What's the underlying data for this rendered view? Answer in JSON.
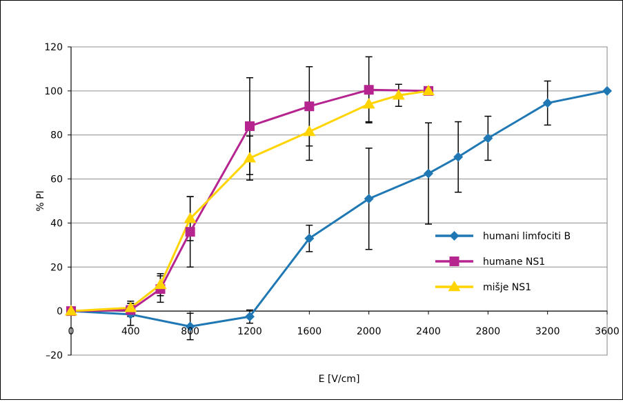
{
  "chart_data": {
    "type": "line",
    "title": "",
    "xlabel": "E [V/cm]",
    "ylabel": "% PI",
    "xlim": [
      0,
      3600
    ],
    "ylim": [
      -20,
      120
    ],
    "x_ticks": [
      "0",
      "400",
      "800",
      "1200",
      "1600",
      "2000",
      "2400",
      "2800",
      "3200",
      "3600"
    ],
    "y_ticks": [
      "–20",
      "0",
      "20",
      "40",
      "60",
      "80",
      "100",
      "120"
    ],
    "grid": "horizontal",
    "legend_position": "right",
    "series": [
      {
        "name": "humani limfociti B",
        "color": "#1f77b4",
        "marker": "diamond",
        "x": [
          0,
          400,
          800,
          1200,
          1600,
          2000,
          2400,
          2600,
          2800,
          3200,
          3600
        ],
        "y": [
          0,
          -1.5,
          -7,
          -2.5,
          33,
          51,
          62.5,
          70,
          78.5,
          94.5,
          100
        ],
        "err": [
          0,
          5,
          6,
          3,
          6,
          23,
          23,
          16,
          10,
          10,
          0
        ]
      },
      {
        "name": "humane NS1",
        "color": "#b5248f",
        "marker": "square",
        "x": [
          0,
          400,
          600,
          800,
          1200,
          1600,
          2000,
          2400
        ],
        "y": [
          0,
          0.5,
          10,
          36,
          84,
          93,
          100.5,
          100
        ],
        "err": [
          0,
          3,
          6,
          16,
          22,
          18,
          15,
          0
        ]
      },
      {
        "name": "mišje NS1",
        "color": "#ffd400",
        "marker": "triangle",
        "x": [
          0,
          400,
          600,
          800,
          1200,
          1600,
          2000,
          2200,
          2400
        ],
        "y": [
          0,
          1.5,
          12,
          42,
          69.5,
          81.5,
          94,
          98,
          100
        ],
        "err": [
          0,
          3,
          5,
          10,
          10,
          13,
          8,
          5,
          0
        ]
      }
    ]
  }
}
